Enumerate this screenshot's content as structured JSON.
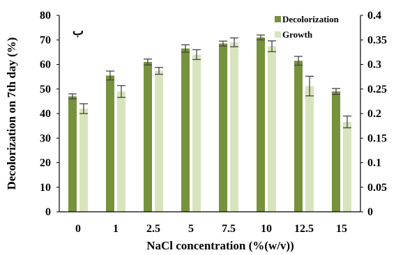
{
  "chart_data": {
    "type": "bar",
    "panel_label": "ب",
    "categories": [
      "0",
      "1",
      "2.5",
      "5",
      "7.5",
      "10",
      "12.5",
      "15"
    ],
    "xlabel": "NaCl concentration (%(w/v))",
    "ylabel": "Decolorization on 7th day (%)",
    "ylim": [
      0,
      80
    ],
    "yticks": [
      "0",
      "10",
      "20",
      "30",
      "40",
      "50",
      "60",
      "70",
      "80"
    ],
    "y2lim": [
      0,
      0.4
    ],
    "y2ticks": [
      "0",
      "0.05",
      "0.1",
      "0.15",
      "0.2",
      "0.25",
      "0.3",
      "0.35",
      "0.4"
    ],
    "legend_position": "top-right",
    "grid": false,
    "series": [
      {
        "name": "Decolorization",
        "axis": "left",
        "color": "#76923c",
        "values": [
          47,
          55.5,
          61,
          66.5,
          68.5,
          71,
          61.5,
          49
        ],
        "errors": [
          1,
          1.8,
          1.2,
          1.5,
          1,
          1,
          1.8,
          1.2
        ]
      },
      {
        "name": "Growth",
        "axis": "right",
        "color": "#d7e4bd",
        "values": [
          0.21,
          0.245,
          0.287,
          0.32,
          0.345,
          0.337,
          0.256,
          0.183
        ],
        "errors": [
          0.01,
          0.012,
          0.007,
          0.01,
          0.009,
          0.011,
          0.02,
          0.012
        ]
      }
    ]
  }
}
